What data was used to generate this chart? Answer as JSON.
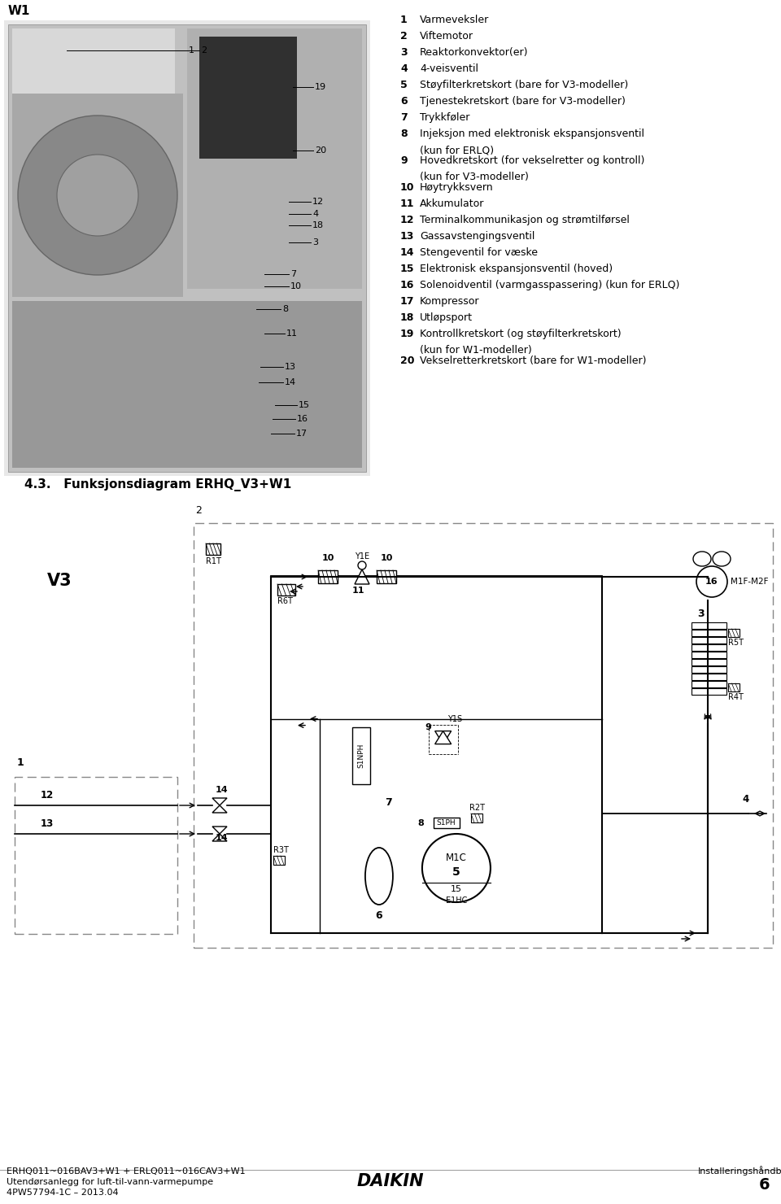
{
  "page_bg": "#ffffff",
  "title_label": "W1",
  "section_header": "4.3.   Funksjonsdiagram ERHQ_V3+W1",
  "footer_left1": "ERHQ011~016BAV3+W1 + ERLQ011~016CAV3+W1",
  "footer_left2": "Utendørsanlegg for luft-til-vann-varmepumpe",
  "footer_left3": "4PW57794-1C – 2013.04",
  "footer_center": "DAIKIN",
  "footer_right": "Installeringshåndbok",
  "page_number": "6",
  "items": [
    [
      "1",
      "Varmeveksler",
      null
    ],
    [
      "2",
      "Viftemotor",
      null
    ],
    [
      "3",
      "Reaktorkonvektor(er)",
      null
    ],
    [
      "4",
      "4-veisventil",
      null
    ],
    [
      "5",
      "Støyfilterkretskort (bare for V3-modeller)",
      null
    ],
    [
      "6",
      "Tjenestekretskort (bare for V3-modeller)",
      null
    ],
    [
      "7",
      "Trykkføler",
      null
    ],
    [
      "8",
      "Injeksjon med elektronisk ekspansjonsventil",
      "(kun for ERLQ)"
    ],
    [
      "9",
      "Hovedkretskort (for vekselretter og kontroll)",
      "(kun for V3-modeller)"
    ],
    [
      "10",
      "Høytrykksvern",
      null
    ],
    [
      "11",
      "Akkumulator",
      null
    ],
    [
      "12",
      "Terminalkommunikasjon og strømtilførsel",
      null
    ],
    [
      "13",
      "Gassavstengingsventil",
      null
    ],
    [
      "14",
      "Stengeventil for væske",
      null
    ],
    [
      "15",
      "Elektronisk ekspansjonsventil (hoved)",
      null
    ],
    [
      "16",
      "Solenoidventil (varmgasspassering) (kun for ERLQ)",
      null
    ],
    [
      "17",
      "Kompressor",
      null
    ],
    [
      "18",
      "Utløpsport",
      null
    ],
    [
      "19",
      "Kontrollkretskort (og støyfilterkretskort)",
      "(kun for W1-modeller)"
    ],
    [
      "20",
      "Vekselretterkretskort (bare for W1-modeller)",
      null
    ]
  ]
}
